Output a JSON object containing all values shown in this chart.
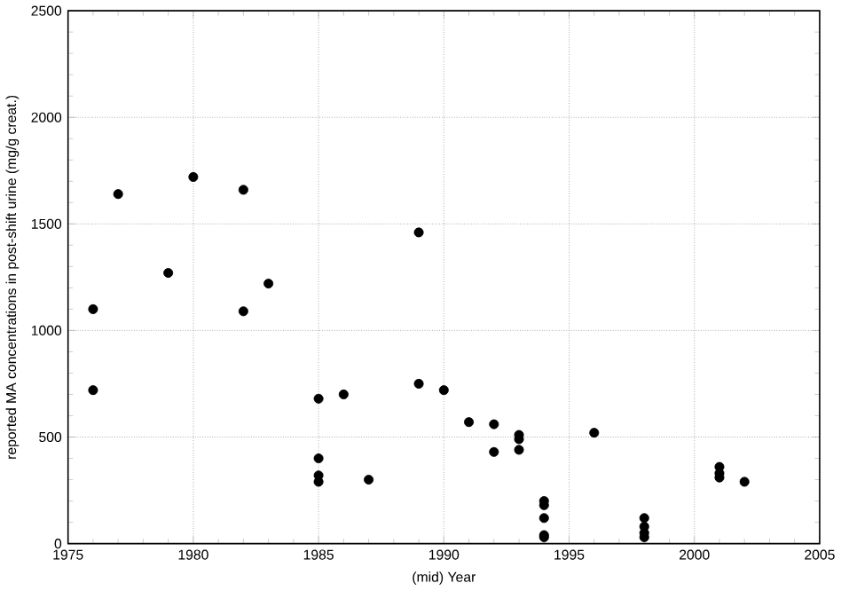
{
  "chart_data": {
    "type": "scatter",
    "xlabel": "(mid) Year",
    "ylabel": "reported MA concentrations in post-shift urine (mg/g creat.)",
    "x": [
      1976,
      1976,
      1977,
      1979,
      1980,
      1982,
      1982,
      1983,
      1985,
      1985,
      1985,
      1985,
      1986,
      1987,
      1989,
      1989,
      1990,
      1991,
      1992,
      1992,
      1993,
      1993,
      1993,
      1994,
      1994,
      1994,
      1994,
      1994,
      1996,
      1998,
      1998,
      1998,
      1998,
      2001,
      2001,
      2001,
      2002
    ],
    "values": [
      1100,
      720,
      1640,
      1270,
      1720,
      1660,
      1090,
      1220,
      680,
      400,
      320,
      290,
      700,
      300,
      1460,
      750,
      720,
      570,
      560,
      430,
      510,
      490,
      440,
      200,
      180,
      120,
      40,
      30,
      520,
      120,
      80,
      50,
      30,
      360,
      330,
      310,
      290
    ],
    "color": "#000000",
    "marker": "circle",
    "grid": true,
    "xlim": [
      1975,
      2005
    ],
    "xticks": [
      1975,
      1980,
      1985,
      1990,
      1995,
      2000,
      2005
    ],
    "ylim": [
      0,
      2500
    ],
    "yticks": [
      0,
      500,
      1000,
      1500,
      2000,
      2500
    ]
  }
}
